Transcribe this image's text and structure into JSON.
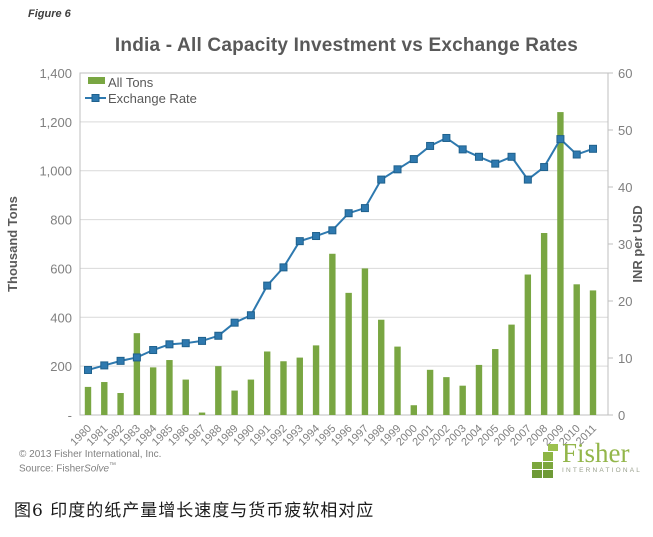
{
  "figure_label": "Figure 6",
  "header": {
    "title": "India - All Capacity Investment vs Exchange Rates"
  },
  "chart_data": {
    "type": "bar",
    "title": "India - All Capacity Investment vs Exchange Rates",
    "categories": [
      "1980",
      "1981",
      "1982",
      "1983",
      "1984",
      "1985",
      "1986",
      "1987",
      "1988",
      "1989",
      "1990",
      "1991",
      "1992",
      "1993",
      "1994",
      "1995",
      "1996",
      "1997",
      "1998",
      "1999",
      "2000",
      "2001",
      "2002",
      "2003",
      "2004",
      "2005",
      "2006",
      "2007",
      "2008",
      "2009",
      "2010",
      "2011"
    ],
    "series": [
      {
        "name": "All Tons",
        "type": "bar",
        "yaxis": "left",
        "color": "#79a642",
        "values": [
          115,
          135,
          90,
          335,
          195,
          225,
          145,
          10,
          200,
          100,
          145,
          260,
          220,
          235,
          285,
          660,
          500,
          600,
          390,
          280,
          40,
          185,
          155,
          120,
          205,
          270,
          370,
          575,
          745,
          1240,
          535,
          510
        ]
      },
      {
        "name": "Exchange Rate",
        "type": "line",
        "yaxis": "right",
        "color": "#2e79af",
        "marker": "square",
        "marker_edge": "#1f618d",
        "values": [
          7.9,
          8.7,
          9.5,
          10.1,
          11.4,
          12.4,
          12.6,
          13.0,
          13.9,
          16.2,
          17.5,
          22.7,
          25.9,
          30.5,
          31.4,
          32.4,
          35.4,
          36.3,
          41.3,
          43.1,
          44.9,
          47.2,
          48.6,
          46.6,
          45.3,
          44.1,
          45.3,
          41.3,
          43.5,
          48.4,
          45.7,
          46.7
        ]
      }
    ],
    "left_axis": {
      "label": "Thousand Tons",
      "min": 0,
      "max": 1400,
      "tick_interval": 200,
      "tick_labels": [
        "-",
        "200",
        "400",
        "600",
        "800",
        "1,000",
        "1,200",
        "1,400"
      ]
    },
    "right_axis": {
      "label": "INR per USD",
      "min": 0,
      "max": 60,
      "tick_interval": 10,
      "tick_labels": [
        "0",
        "10",
        "20",
        "30",
        "40",
        "50",
        "60"
      ]
    },
    "legend_position": "top-left-inside",
    "grid": true,
    "colors": {
      "grid": "#d9d9d9",
      "axis_border": "#bfbfbf",
      "tick_text": "#808080",
      "legend_text": "#595959",
      "axis_title_text": "#595959"
    }
  },
  "footer": {
    "copyright": "© 2013 Fisher International, Inc.",
    "source_prefix": "Source: Fisher",
    "source_solve": "Solve",
    "source_tm": "™"
  },
  "logo": {
    "name": "Fisher",
    "subtext": "INTERNATIONAL"
  },
  "caption": "图6 印度的纸产量增长速度与货币疲软相对应"
}
